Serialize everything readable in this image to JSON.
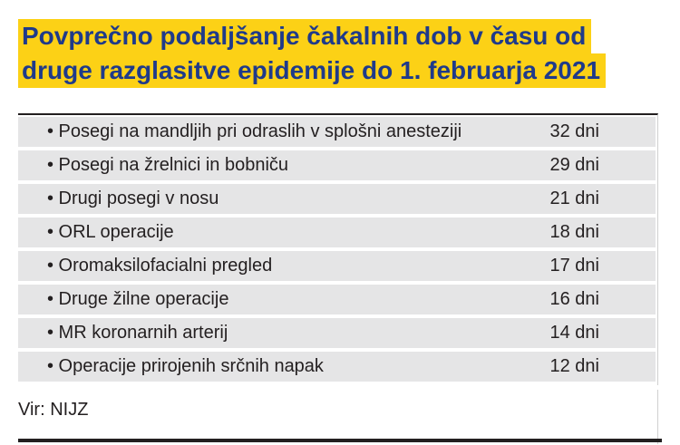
{
  "header": {
    "title_line_1": "Povprečno podaljšanje čakalnih dob v času od",
    "title_line_2": "druge razglasitve epidemije do 1. februarja 2021",
    "highlight_color": "#fcd116",
    "title_color": "#1f3a8a"
  },
  "table": {
    "row_color": "#e5e5e6",
    "rows": [
      {
        "label": "• Posegi na mandljih pri odraslih v splošni anesteziji",
        "value": "32 dni"
      },
      {
        "label": "• Posegi na žrelnici in bobniču",
        "value": "29 dni"
      },
      {
        "label": "• Drugi posegi v nosu",
        "value": "21 dni"
      },
      {
        "label": "• ORL operacije",
        "value": "18 dni"
      },
      {
        "label": "• Oromaksilofacialni pregled",
        "value": "17 dni"
      },
      {
        "label": "• Druge žilne operacije",
        "value": "16 dni"
      },
      {
        "label": "• MR koronarnih arterij",
        "value": "14 dni"
      },
      {
        "label": "• Operacije prirojenih srčnih napak",
        "value": "12 dni"
      }
    ]
  },
  "footer": {
    "source": "Vir: NIJZ"
  }
}
